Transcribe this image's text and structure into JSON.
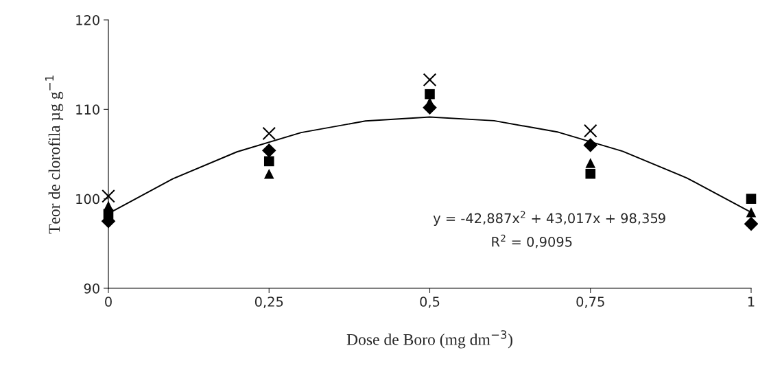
{
  "chart_data": {
    "type": "scatter",
    "xlabel": "Dose de Boro (mg dm$^{−3}$)",
    "ylabel": "Teor de clorofila µg g$^{−1}$",
    "x": [
      0,
      0.25,
      0.5,
      0.75,
      1
    ],
    "xlim": [
      0,
      1
    ],
    "xticks": [
      0,
      {
        "value": 0.25,
        "label": "0,25"
      },
      {
        "value": 0.5,
        "label": "0,5"
      },
      {
        "value": 0.75,
        "label": "0,75"
      },
      1
    ],
    "ylim": [
      90,
      120
    ],
    "yticks": [
      90,
      100,
      110,
      120
    ],
    "grid": false,
    "legend": false,
    "series": [
      {
        "color": "#000000",
        "marker": "diamond",
        "values": [
          97.5,
          105.4,
          110.2,
          106.0,
          97.2
        ]
      },
      {
        "color": "#000000",
        "marker": "square",
        "values": [
          98.3,
          104.2,
          111.7,
          102.8,
          100.0
        ]
      },
      {
        "color": "#000000",
        "marker": "triangle",
        "values": [
          99.2,
          102.8,
          110.8,
          104.0,
          98.5
        ]
      },
      {
        "color": "#000000",
        "marker": "cross",
        "values": [
          100.3,
          107.3,
          113.3,
          107.6,
          null
        ]
      },
      {
        "type": "line",
        "color": "#000000",
        "marker": "none",
        "line_style": "solid",
        "x": [
          0,
          0.1,
          0.2,
          0.3,
          0.4,
          0.5,
          0.6,
          0.7,
          0.8,
          0.9,
          1
        ],
        "values": [
          98.36,
          102.23,
          105.25,
          107.41,
          108.7,
          109.15,
          108.73,
          107.45,
          105.32,
          102.33,
          98.49
        ]
      }
    ],
    "annotations": [
      "y = -42,887x$^{2}$ + 43,017x + 98,359",
      "R$^{2}$ = 0,9095"
    ]
  }
}
